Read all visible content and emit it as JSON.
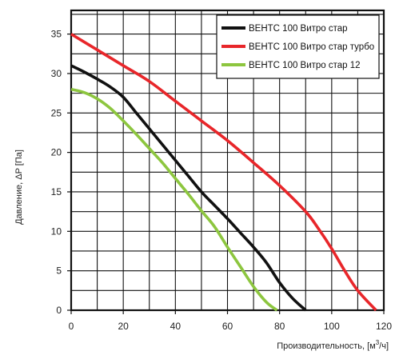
{
  "chart_data": {
    "type": "line",
    "xlabel_main": "Производительность, [м",
    "xlabel_sup": "3",
    "xlabel_tail": "/ч]",
    "ylabel": "Давление, ΔP [Па]",
    "xlim": [
      0,
      120
    ],
    "ylim": [
      0,
      38
    ],
    "xticks": [
      0,
      20,
      40,
      60,
      80,
      100,
      120
    ],
    "yticks": [
      0,
      5,
      10,
      15,
      20,
      25,
      30,
      35
    ],
    "grid": true,
    "legend_position": "top-right",
    "series": [
      {
        "name": "ВЕНТС 100 Витро стар",
        "color": "#111111",
        "points": [
          [
            0,
            31
          ],
          [
            5,
            30.2
          ],
          [
            10,
            29.3
          ],
          [
            15,
            28.3
          ],
          [
            20,
            27
          ],
          [
            25,
            25
          ],
          [
            30,
            23
          ],
          [
            35,
            21
          ],
          [
            40,
            19
          ],
          [
            45,
            17
          ],
          [
            50,
            15
          ],
          [
            55,
            13.3
          ],
          [
            60,
            11.6
          ],
          [
            65,
            9.8
          ],
          [
            70,
            8
          ],
          [
            75,
            6
          ],
          [
            80,
            3.5
          ],
          [
            85,
            1.5
          ],
          [
            90,
            0
          ]
        ]
      },
      {
        "name": "ВЕНТС 100 Витро стар турбо",
        "color": "#e8262a",
        "points": [
          [
            0,
            35
          ],
          [
            10,
            33
          ],
          [
            20,
            31
          ],
          [
            30,
            29
          ],
          [
            40,
            26.5
          ],
          [
            50,
            24
          ],
          [
            60,
            21.5
          ],
          [
            70,
            18.7
          ],
          [
            80,
            15.8
          ],
          [
            90,
            12.5
          ],
          [
            95,
            10.3
          ],
          [
            100,
            7.8
          ],
          [
            105,
            5
          ],
          [
            110,
            2.5
          ],
          [
            117,
            0
          ]
        ]
      },
      {
        "name": "ВЕНТС 100 Витро стар 12",
        "color": "#8dc63f",
        "points": [
          [
            0,
            28
          ],
          [
            5,
            27.6
          ],
          [
            10,
            26.8
          ],
          [
            15,
            25.6
          ],
          [
            20,
            24
          ],
          [
            25,
            22.3
          ],
          [
            30,
            20.5
          ],
          [
            35,
            18.7
          ],
          [
            40,
            16.7
          ],
          [
            45,
            14.7
          ],
          [
            50,
            12.6
          ],
          [
            55,
            10.6
          ],
          [
            60,
            8
          ],
          [
            65,
            5.5
          ],
          [
            70,
            3
          ],
          [
            75,
            1
          ],
          [
            79,
            0
          ]
        ]
      }
    ]
  }
}
